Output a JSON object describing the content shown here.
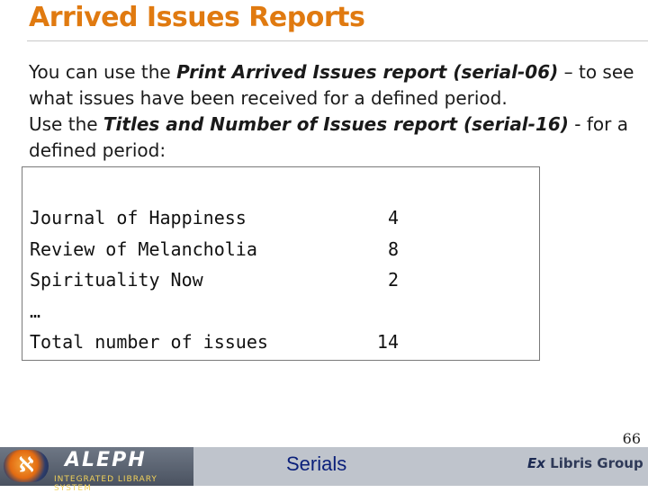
{
  "slide": {
    "title": "Arrived Issues Reports",
    "page_number": "66"
  },
  "body": {
    "p1_pre": "You can use the ",
    "p1_em": "Print Arrived Issues report (serial-06)",
    "p1_post": " – to see what issues have been received for a defined period.",
    "p2_pre": "Use the ",
    "p2_em": "Titles and Number of Issues report (serial-16)",
    "p2_post": " - for a defined period:"
  },
  "report": {
    "rows": [
      {
        "name": "Journal of Happiness",
        "count": "4"
      },
      {
        "name": "Review of Melancholia",
        "count": "8"
      },
      {
        "name": "Spirituality Now",
        "count": "2"
      },
      {
        "name": "…",
        "count": ""
      },
      {
        "name": "Total number of issues",
        "count": "14"
      }
    ]
  },
  "footer": {
    "brand": "ALEPH",
    "brand_sub": "INTEGRATED LIBRARY SYSTEM",
    "center_label": "Serials",
    "partner_mark": "Ex",
    "partner_name": " Libris Group"
  },
  "colors": {
    "title": "#e07a10",
    "footer_bg": "#bfc4cc",
    "footer_label": "#0a1f7a"
  }
}
